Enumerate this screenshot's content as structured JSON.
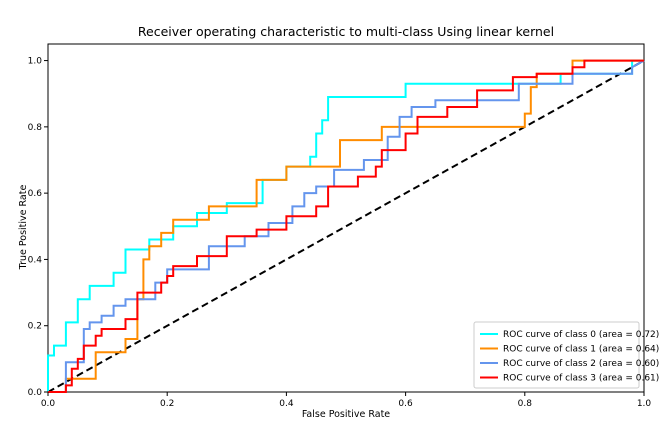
{
  "chart_data": {
    "type": "line",
    "title": "Receiver operating characteristic to multi-class Using linear kernel",
    "xlabel": "False Positive Rate",
    "ylabel": "True Positive Rate",
    "xlim": [
      0.0,
      1.0
    ],
    "ylim": [
      0.0,
      1.05
    ],
    "xticks": [
      "0.0",
      "0.2",
      "0.4",
      "0.6",
      "0.8",
      "1.0"
    ],
    "yticks": [
      "0.0",
      "0.2",
      "0.4",
      "0.6",
      "0.8",
      "1.0"
    ],
    "grid": false,
    "legend_position": "lower-right",
    "diagonal": {
      "x": [
        0,
        1
      ],
      "y": [
        0,
        1
      ],
      "color": "#000000",
      "style": "dashed"
    },
    "series": [
      {
        "name": "ROC curve of class 0 (area = 0.72)",
        "color": "#00ffff",
        "x": [
          0.0,
          0.0,
          0.01,
          0.01,
          0.03,
          0.03,
          0.05,
          0.05,
          0.07,
          0.07,
          0.11,
          0.11,
          0.13,
          0.13,
          0.17,
          0.17,
          0.21,
          0.21,
          0.25,
          0.25,
          0.3,
          0.3,
          0.36,
          0.36,
          0.4,
          0.4,
          0.44,
          0.44,
          0.45,
          0.45,
          0.46,
          0.46,
          0.47,
          0.47,
          0.6,
          0.6,
          0.86,
          0.86,
          0.88,
          0.88,
          0.98,
          0.98,
          1.0
        ],
        "y": [
          0.0,
          0.11,
          0.11,
          0.14,
          0.14,
          0.21,
          0.21,
          0.28,
          0.28,
          0.32,
          0.32,
          0.36,
          0.36,
          0.43,
          0.43,
          0.46,
          0.46,
          0.5,
          0.5,
          0.54,
          0.54,
          0.57,
          0.57,
          0.64,
          0.64,
          0.68,
          0.68,
          0.71,
          0.71,
          0.78,
          0.78,
          0.82,
          0.82,
          0.89,
          0.89,
          0.93,
          0.93,
          0.96,
          0.96,
          0.96,
          0.96,
          1.0,
          1.0
        ]
      },
      {
        "name": "ROC curve of class 1 (area = 0.64)",
        "color": "#ff8c00",
        "x": [
          0.0,
          0.03,
          0.03,
          0.08,
          0.08,
          0.13,
          0.13,
          0.15,
          0.15,
          0.16,
          0.16,
          0.17,
          0.17,
          0.19,
          0.19,
          0.21,
          0.21,
          0.23,
          0.23,
          0.27,
          0.27,
          0.35,
          0.35,
          0.4,
          0.4,
          0.49,
          0.49,
          0.56,
          0.56,
          0.8,
          0.8,
          0.81,
          0.81,
          0.82,
          0.82,
          0.88,
          0.88,
          1.0
        ],
        "y": [
          0.0,
          0.0,
          0.04,
          0.04,
          0.12,
          0.12,
          0.16,
          0.16,
          0.28,
          0.28,
          0.4,
          0.4,
          0.44,
          0.44,
          0.48,
          0.48,
          0.52,
          0.52,
          0.52,
          0.52,
          0.56,
          0.56,
          0.64,
          0.64,
          0.68,
          0.68,
          0.76,
          0.76,
          0.8,
          0.8,
          0.84,
          0.84,
          0.92,
          0.92,
          0.96,
          0.96,
          1.0,
          1.0
        ]
      },
      {
        "name": "ROC curve of class 2 (area = 0.60)",
        "color": "#6495ed",
        "x": [
          0.0,
          0.03,
          0.03,
          0.06,
          0.06,
          0.07,
          0.07,
          0.09,
          0.09,
          0.11,
          0.11,
          0.13,
          0.13,
          0.18,
          0.18,
          0.2,
          0.2,
          0.27,
          0.27,
          0.33,
          0.33,
          0.37,
          0.37,
          0.41,
          0.41,
          0.43,
          0.43,
          0.45,
          0.45,
          0.48,
          0.48,
          0.53,
          0.53,
          0.57,
          0.57,
          0.59,
          0.59,
          0.61,
          0.61,
          0.65,
          0.65,
          0.73,
          0.73,
          0.79,
          0.79,
          0.84,
          0.84,
          0.88,
          0.88,
          0.98,
          0.98,
          1.0
        ],
        "y": [
          0.0,
          0.0,
          0.09,
          0.09,
          0.19,
          0.19,
          0.21,
          0.21,
          0.23,
          0.23,
          0.26,
          0.26,
          0.28,
          0.28,
          0.33,
          0.33,
          0.37,
          0.37,
          0.44,
          0.44,
          0.47,
          0.47,
          0.51,
          0.51,
          0.56,
          0.56,
          0.6,
          0.6,
          0.62,
          0.62,
          0.67,
          0.67,
          0.7,
          0.7,
          0.77,
          0.77,
          0.83,
          0.83,
          0.86,
          0.86,
          0.88,
          0.88,
          0.88,
          0.88,
          0.93,
          0.93,
          0.93,
          0.93,
          0.96,
          0.96,
          0.98,
          1.0
        ]
      },
      {
        "name": "ROC curve of class 3 (area = 0.61)",
        "color": "#ff0000",
        "x": [
          0.0,
          0.03,
          0.03,
          0.04,
          0.04,
          0.05,
          0.05,
          0.06,
          0.06,
          0.08,
          0.08,
          0.09,
          0.09,
          0.13,
          0.13,
          0.15,
          0.15,
          0.19,
          0.19,
          0.2,
          0.2,
          0.21,
          0.21,
          0.25,
          0.25,
          0.3,
          0.3,
          0.35,
          0.35,
          0.4,
          0.4,
          0.45,
          0.45,
          0.47,
          0.47,
          0.52,
          0.52,
          0.55,
          0.55,
          0.56,
          0.56,
          0.6,
          0.6,
          0.62,
          0.62,
          0.67,
          0.67,
          0.72,
          0.72,
          0.78,
          0.78,
          0.82,
          0.82,
          0.88,
          0.88,
          0.9,
          0.9,
          1.0
        ],
        "y": [
          0.0,
          0.0,
          0.02,
          0.02,
          0.07,
          0.07,
          0.1,
          0.1,
          0.14,
          0.14,
          0.17,
          0.17,
          0.19,
          0.19,
          0.22,
          0.22,
          0.3,
          0.3,
          0.33,
          0.33,
          0.35,
          0.35,
          0.38,
          0.38,
          0.41,
          0.41,
          0.47,
          0.47,
          0.49,
          0.49,
          0.53,
          0.53,
          0.56,
          0.56,
          0.62,
          0.62,
          0.65,
          0.65,
          0.68,
          0.68,
          0.73,
          0.73,
          0.78,
          0.78,
          0.83,
          0.83,
          0.86,
          0.86,
          0.91,
          0.91,
          0.95,
          0.95,
          0.96,
          0.96,
          0.98,
          0.98,
          1.0,
          1.0
        ]
      }
    ]
  }
}
